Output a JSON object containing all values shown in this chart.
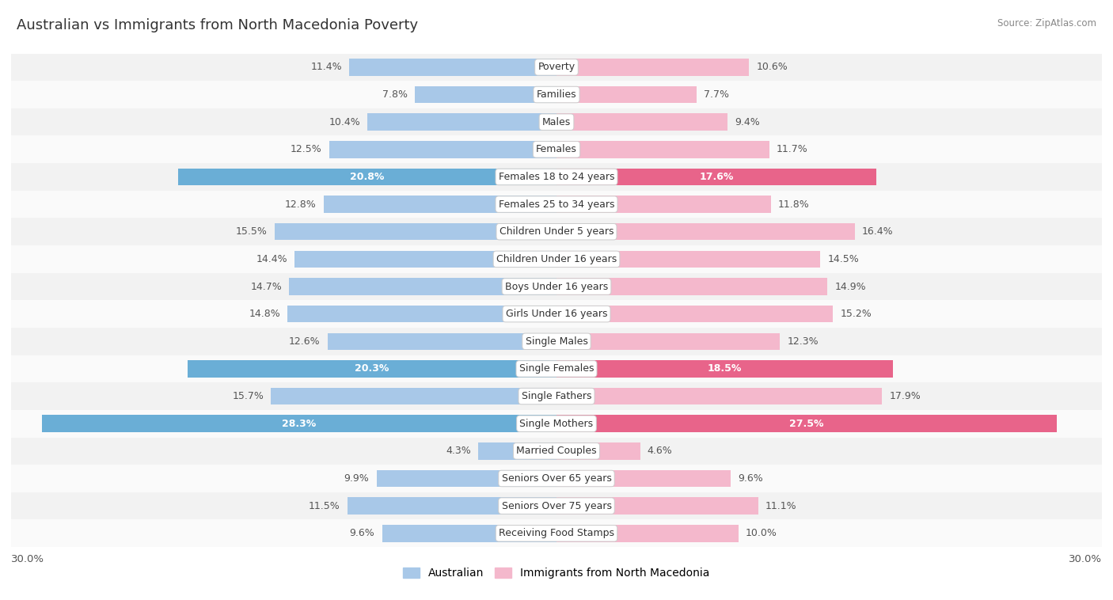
{
  "title": "Australian vs Immigrants from North Macedonia Poverty",
  "source": "Source: ZipAtlas.com",
  "categories": [
    "Poverty",
    "Families",
    "Males",
    "Females",
    "Females 18 to 24 years",
    "Females 25 to 34 years",
    "Children Under 5 years",
    "Children Under 16 years",
    "Boys Under 16 years",
    "Girls Under 16 years",
    "Single Males",
    "Single Females",
    "Single Fathers",
    "Single Mothers",
    "Married Couples",
    "Seniors Over 65 years",
    "Seniors Over 75 years",
    "Receiving Food Stamps"
  ],
  "australian": [
    11.4,
    7.8,
    10.4,
    12.5,
    20.8,
    12.8,
    15.5,
    14.4,
    14.7,
    14.8,
    12.6,
    20.3,
    15.7,
    28.3,
    4.3,
    9.9,
    11.5,
    9.6
  ],
  "immigrants": [
    10.6,
    7.7,
    9.4,
    11.7,
    17.6,
    11.8,
    16.4,
    14.5,
    14.9,
    15.2,
    12.3,
    18.5,
    17.9,
    27.5,
    4.6,
    9.6,
    11.1,
    10.0
  ],
  "australian_color_normal": "#a8c8e8",
  "immigrants_color_normal": "#f4b8cc",
  "australian_color_highlight": "#6aaed6",
  "immigrants_color_highlight": "#e8648a",
  "highlight_rows": [
    4,
    11,
    13
  ],
  "row_bg_even": "#f2f2f2",
  "row_bg_odd": "#fafafa",
  "xlim": 30.0,
  "value_fontsize": 9,
  "category_fontsize": 9,
  "title_fontsize": 13
}
